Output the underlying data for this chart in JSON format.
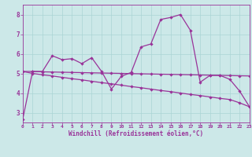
{
  "xlabel": "Windchill (Refroidissement éolien,°C)",
  "bg_color": "#cce8e8",
  "grid_color": "#aad4d4",
  "line_color": "#993399",
  "x_data": [
    0,
    1,
    2,
    3,
    4,
    5,
    6,
    7,
    8,
    9,
    10,
    11,
    12,
    13,
    14,
    15,
    16,
    17,
    18,
    19,
    20,
    21,
    22,
    23
  ],
  "y_main": [
    2.65,
    5.1,
    5.1,
    5.9,
    5.7,
    5.75,
    5.5,
    5.8,
    5.1,
    4.2,
    4.85,
    5.05,
    6.35,
    6.5,
    7.75,
    7.85,
    8.0,
    7.2,
    4.55,
    4.9,
    4.9,
    4.7,
    4.1,
    3.3
  ],
  "y_trend1": [
    5.1,
    5.1,
    5.08,
    5.07,
    5.06,
    5.05,
    5.04,
    5.03,
    5.02,
    5.01,
    5.0,
    4.99,
    4.98,
    4.97,
    4.96,
    4.95,
    4.94,
    4.93,
    4.92,
    4.91,
    4.9,
    4.89,
    4.88,
    4.87
  ],
  "y_trend2": [
    5.1,
    5.0,
    4.93,
    4.87,
    4.8,
    4.73,
    4.67,
    4.6,
    4.53,
    4.47,
    4.4,
    4.33,
    4.27,
    4.2,
    4.13,
    4.07,
    4.0,
    3.93,
    3.87,
    3.8,
    3.73,
    3.67,
    3.5,
    3.3
  ],
  "xlim": [
    0,
    23
  ],
  "ylim": [
    2.5,
    8.5
  ],
  "yticks": [
    3,
    4,
    5,
    6,
    7,
    8
  ],
  "xticks": [
    0,
    1,
    2,
    3,
    4,
    5,
    6,
    7,
    8,
    9,
    10,
    11,
    12,
    13,
    14,
    15,
    16,
    17,
    18,
    19,
    20,
    21,
    22,
    23
  ]
}
